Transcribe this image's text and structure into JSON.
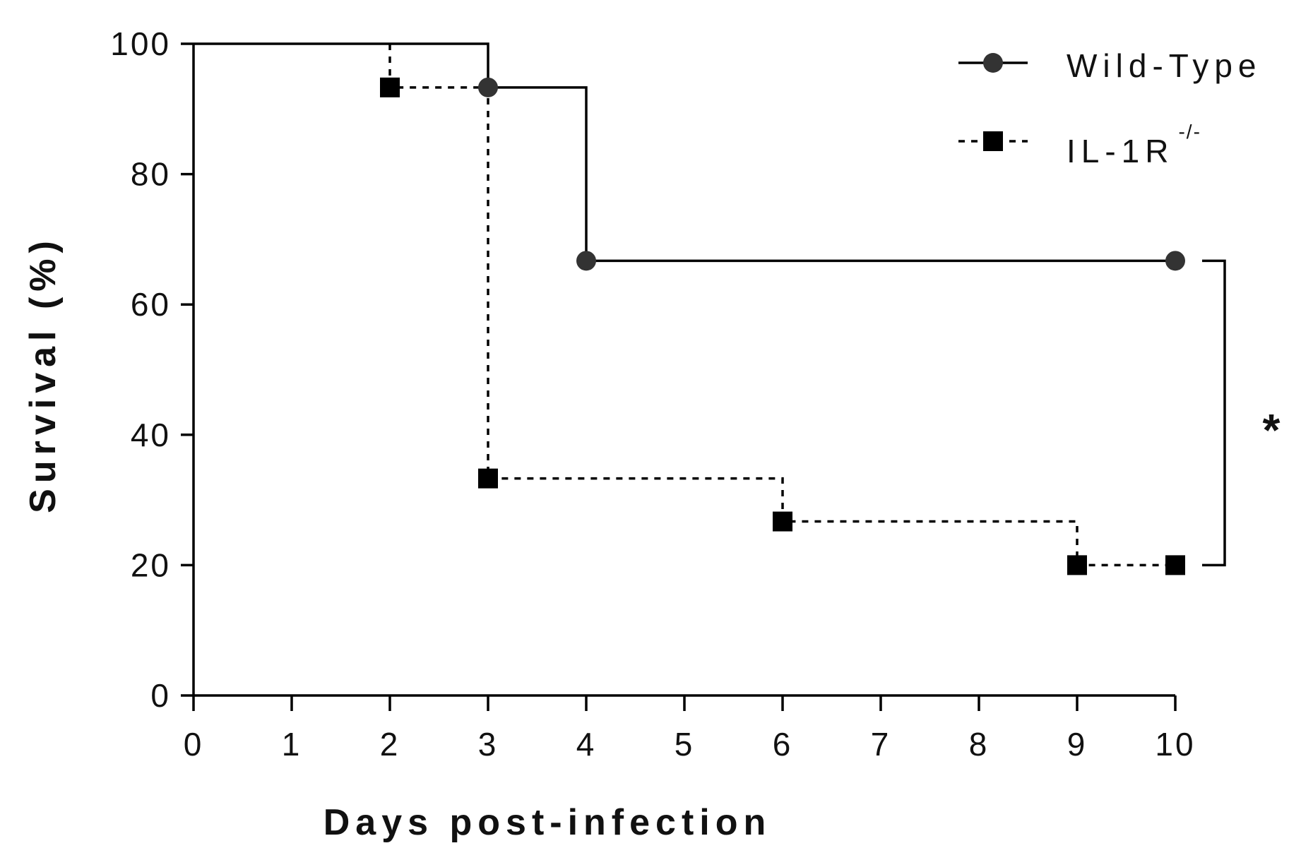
{
  "chart_data": {
    "type": "line",
    "subtype": "kaplan-meier-step",
    "title": "",
    "xlabel": "Days post-infection",
    "ylabel": "Survival (%)",
    "xlim": [
      0,
      10
    ],
    "ylim": [
      0,
      100
    ],
    "x_ticks": [
      "0",
      "1",
      "2",
      "3",
      "4",
      "5",
      "6",
      "7",
      "8",
      "9",
      "10"
    ],
    "y_ticks": [
      "0",
      "20",
      "40",
      "60",
      "80",
      "100"
    ],
    "grid": false,
    "legend_position": "top-right",
    "series": [
      {
        "name": "Wild-Type",
        "line_style": "solid",
        "marker": "circle",
        "color": "#333333",
        "steps": [
          [
            0,
            100
          ],
          [
            3,
            100
          ],
          [
            3,
            93.3
          ],
          [
            4,
            93.3
          ],
          [
            4,
            66.7
          ],
          [
            10,
            66.7
          ]
        ],
        "points": [
          [
            3,
            93.3
          ],
          [
            4,
            66.7
          ],
          [
            10,
            66.7
          ]
        ]
      },
      {
        "name": "IL-1R",
        "name_superscript": "-/-",
        "line_style": "dotted",
        "marker": "square",
        "color": "#000000",
        "steps": [
          [
            2,
            100
          ],
          [
            2,
            93.3
          ],
          [
            3,
            93.3
          ],
          [
            3,
            33.3
          ],
          [
            6,
            33.3
          ],
          [
            6,
            26.7
          ],
          [
            9,
            26.7
          ],
          [
            9,
            20
          ],
          [
            10,
            20
          ]
        ],
        "points": [
          [
            2,
            93.3
          ],
          [
            3,
            33.3
          ],
          [
            6,
            26.7
          ],
          [
            9,
            20
          ],
          [
            10,
            20
          ]
        ]
      }
    ],
    "annotations": [
      {
        "type": "significance-bracket",
        "label": "*",
        "x": 10,
        "y_from": 66.7,
        "y_to": 20
      }
    ]
  }
}
